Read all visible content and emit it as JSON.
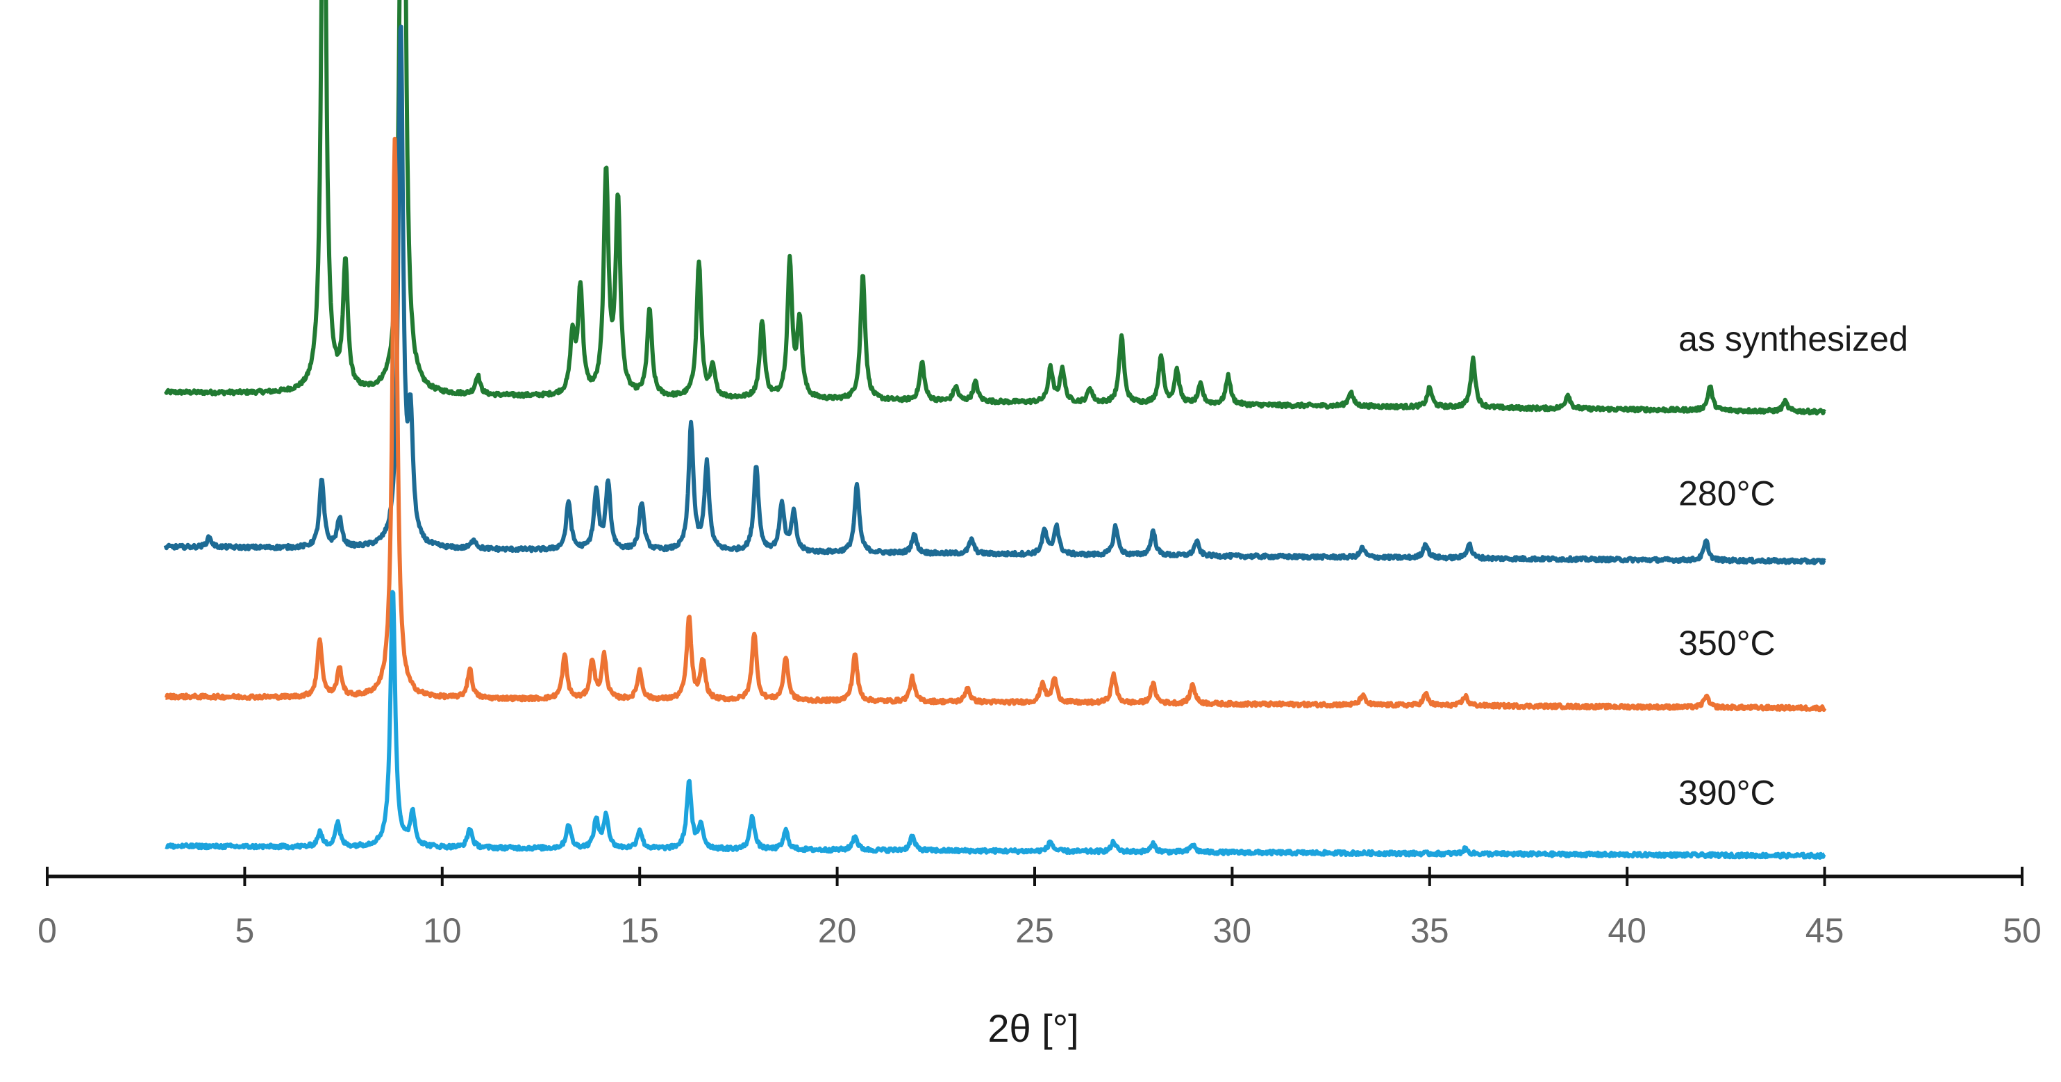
{
  "chart_data": {
    "type": "line",
    "title": "",
    "xlabel": "2θ [°]",
    "ylabel": "",
    "xlim": [
      0,
      50
    ],
    "x_ticks": [
      0,
      5,
      10,
      15,
      20,
      25,
      30,
      35,
      40,
      45,
      50
    ],
    "x_tick_labels": [
      "0",
      "5",
      "10",
      "15",
      "20",
      "25",
      "30",
      "35",
      "40",
      "45",
      "50"
    ],
    "y_axis_shown": false,
    "grid": false,
    "legend": "inline labels at right end of each trace",
    "x_range_of_traces": [
      3,
      45
    ],
    "series": [
      {
        "name": "as synthesized",
        "color": "#217a32",
        "offset": 0.615,
        "baseline": [
          [
            3,
            0
          ],
          [
            45,
            -0.02
          ]
        ],
        "peaks": [
          [
            7.0,
            0.66
          ],
          [
            7.55,
            0.13
          ],
          [
            9.0,
            0.95
          ],
          [
            10.9,
            0.02
          ],
          [
            13.3,
            0.06
          ],
          [
            13.5,
            0.11
          ],
          [
            14.15,
            0.23
          ],
          [
            14.45,
            0.2
          ],
          [
            15.25,
            0.09
          ],
          [
            16.5,
            0.14
          ],
          [
            16.85,
            0.03
          ],
          [
            18.1,
            0.08
          ],
          [
            18.8,
            0.14
          ],
          [
            19.05,
            0.08
          ],
          [
            20.65,
            0.13
          ],
          [
            22.15,
            0.04
          ],
          [
            23.0,
            0.015
          ],
          [
            23.5,
            0.02
          ],
          [
            25.4,
            0.035
          ],
          [
            25.7,
            0.035
          ],
          [
            26.4,
            0.015
          ],
          [
            27.2,
            0.07
          ],
          [
            28.2,
            0.05
          ],
          [
            28.6,
            0.035
          ],
          [
            29.2,
            0.02
          ],
          [
            29.9,
            0.03
          ],
          [
            33.0,
            0.015
          ],
          [
            35.0,
            0.02
          ],
          [
            36.1,
            0.05
          ],
          [
            38.5,
            0.015
          ],
          [
            42.1,
            0.025
          ],
          [
            44.0,
            0.01
          ]
        ]
      },
      {
        "name": "280°C",
        "color": "#1d6b94",
        "offset": 0.455,
        "baseline": [
          [
            3,
            0
          ],
          [
            45,
            -0.015
          ]
        ],
        "peaks": [
          [
            4.1,
            0.01
          ],
          [
            6.95,
            0.07
          ],
          [
            7.4,
            0.03
          ],
          [
            8.95,
            0.54
          ],
          [
            9.2,
            0.12
          ],
          [
            10.8,
            0.01
          ],
          [
            13.2,
            0.05
          ],
          [
            13.9,
            0.06
          ],
          [
            14.2,
            0.07
          ],
          [
            15.05,
            0.05
          ],
          [
            16.3,
            0.13
          ],
          [
            16.7,
            0.09
          ],
          [
            17.95,
            0.09
          ],
          [
            18.6,
            0.05
          ],
          [
            18.9,
            0.04
          ],
          [
            20.5,
            0.07
          ],
          [
            21.95,
            0.02
          ],
          [
            23.4,
            0.015
          ],
          [
            25.25,
            0.025
          ],
          [
            25.55,
            0.03
          ],
          [
            27.05,
            0.03
          ],
          [
            28.0,
            0.025
          ],
          [
            29.1,
            0.015
          ],
          [
            33.3,
            0.01
          ],
          [
            34.9,
            0.015
          ],
          [
            36.0,
            0.015
          ],
          [
            42.0,
            0.02
          ]
        ]
      },
      {
        "name": "350°C",
        "color": "#ed7333",
        "offset": 0.3,
        "baseline": [
          [
            3,
            0
          ],
          [
            45,
            -0.012
          ]
        ],
        "peaks": [
          [
            6.9,
            0.06
          ],
          [
            7.4,
            0.03
          ],
          [
            8.8,
            0.58
          ],
          [
            10.7,
            0.03
          ],
          [
            13.1,
            0.045
          ],
          [
            13.8,
            0.04
          ],
          [
            14.1,
            0.045
          ],
          [
            15.0,
            0.03
          ],
          [
            16.25,
            0.085
          ],
          [
            16.6,
            0.04
          ],
          [
            17.9,
            0.07
          ],
          [
            18.7,
            0.045
          ],
          [
            20.45,
            0.05
          ],
          [
            21.9,
            0.025
          ],
          [
            23.3,
            0.015
          ],
          [
            25.2,
            0.02
          ],
          [
            25.5,
            0.025
          ],
          [
            27.0,
            0.03
          ],
          [
            28.0,
            0.02
          ],
          [
            29.0,
            0.02
          ],
          [
            33.3,
            0.01
          ],
          [
            34.9,
            0.012
          ],
          [
            35.9,
            0.01
          ],
          [
            42.0,
            0.012
          ]
        ]
      },
      {
        "name": "390°C",
        "color": "#1ca3dd",
        "offset": 0.145,
        "baseline": [
          [
            3,
            0
          ],
          [
            45,
            -0.01
          ]
        ],
        "peaks": [
          [
            6.9,
            0.015
          ],
          [
            7.35,
            0.025
          ],
          [
            8.75,
            0.27
          ],
          [
            9.25,
            0.035
          ],
          [
            10.7,
            0.02
          ],
          [
            13.2,
            0.025
          ],
          [
            13.9,
            0.03
          ],
          [
            14.15,
            0.035
          ],
          [
            15.0,
            0.02
          ],
          [
            16.25,
            0.07
          ],
          [
            16.55,
            0.025
          ],
          [
            17.85,
            0.035
          ],
          [
            18.7,
            0.02
          ],
          [
            20.45,
            0.015
          ],
          [
            21.9,
            0.015
          ],
          [
            25.4,
            0.01
          ],
          [
            27.0,
            0.01
          ],
          [
            28.0,
            0.008
          ],
          [
            29.0,
            0.008
          ],
          [
            35.9,
            0.005
          ]
        ]
      }
    ]
  }
}
